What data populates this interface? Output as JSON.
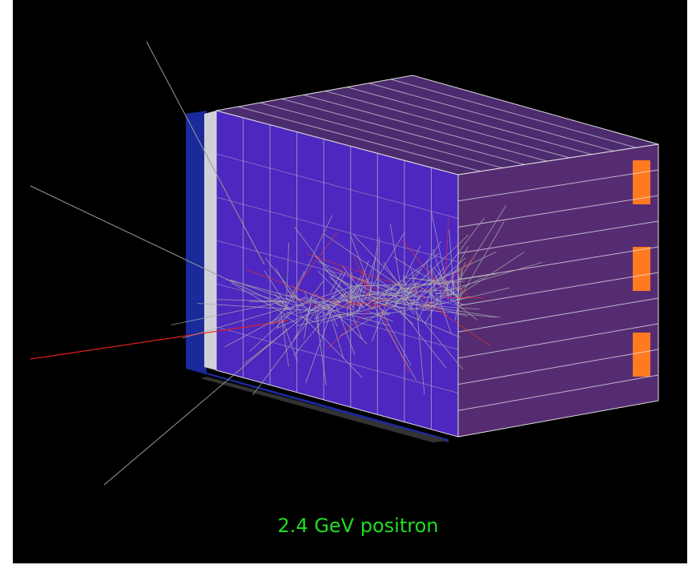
{
  "caption": "2.4 GeV positron"
}
